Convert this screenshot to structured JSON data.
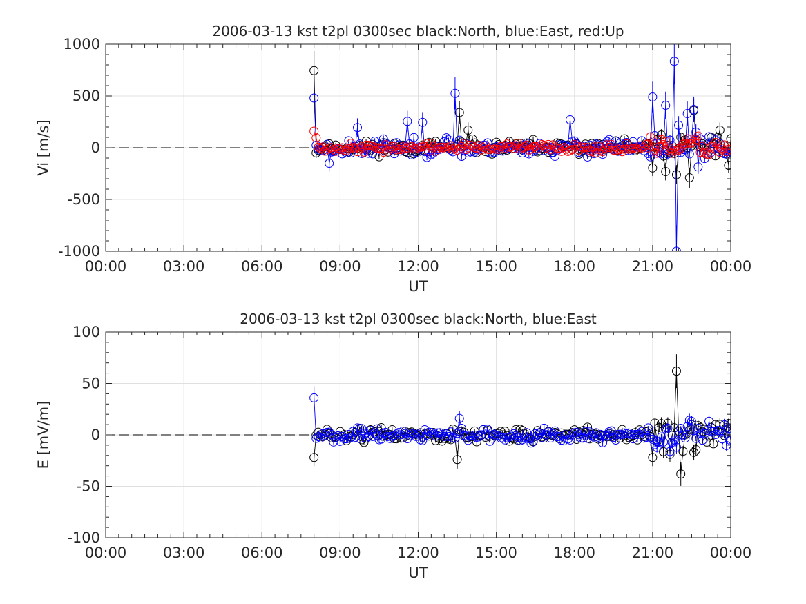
{
  "chart_data": [
    {
      "type": "scatter",
      "title": "2006-03-13 kst t2pl 0300sec black:North, blue:East, red:Up",
      "xlabel": "UT",
      "ylabel": "Vi [m/s]",
      "xlim": [
        0,
        24
      ],
      "ylim": [
        -1000,
        1000
      ],
      "xticks": [
        0,
        3,
        6,
        9,
        12,
        15,
        18,
        21,
        24
      ],
      "xtick_labels": [
        "00:00",
        "03:00",
        "06:00",
        "09:00",
        "12:00",
        "15:00",
        "18:00",
        "21:00",
        "00:00"
      ],
      "yticks": [
        -1000,
        -500,
        0,
        500,
        1000
      ],
      "ytick_labels": [
        "-1000",
        "-500",
        "0",
        "500",
        "1000"
      ],
      "grid": true,
      "zero_line": {
        "x_start": 0,
        "x_end": 8,
        "style": "dashed",
        "color": "#000000"
      },
      "series": [
        {
          "name": "North",
          "color": "#000000",
          "seed": 11,
          "amp": 40,
          "spikes": [
            [
              8.0,
              745
            ],
            [
              8.08,
              -50
            ],
            [
              13.55,
              340
            ],
            [
              13.9,
              170
            ],
            [
              21.0,
              -195
            ],
            [
              21.5,
              -230
            ],
            [
              21.9,
              -260
            ],
            [
              22.4,
              -290
            ],
            [
              22.55,
              360
            ],
            [
              23.6,
              170
            ],
            [
              23.9,
              -170
            ]
          ]
        },
        {
          "name": "East",
          "color": "#0000ff",
          "seed": 23,
          "amp": 50,
          "spikes": [
            [
              8.0,
              480
            ],
            [
              8.6,
              -150
            ],
            [
              9.65,
              195
            ],
            [
              11.6,
              255
            ],
            [
              12.2,
              245
            ],
            [
              13.45,
              525
            ],
            [
              17.8,
              270
            ],
            [
              21.0,
              490
            ],
            [
              21.5,
              410
            ],
            [
              21.8,
              835
            ],
            [
              21.9,
              -1000
            ],
            [
              22.35,
              330
            ],
            [
              22.6,
              370
            ]
          ]
        },
        {
          "name": "Up",
          "color": "#ff0000",
          "seed": 37,
          "amp": 25,
          "spikes": [
            [
              7.95,
              160
            ],
            [
              8.05,
              95
            ]
          ]
        }
      ]
    },
    {
      "type": "scatter",
      "title": "2006-03-13 kst t2pl 0300sec black:North, blue:East",
      "xlabel": "UT",
      "ylabel": "E [mV/m]",
      "xlim": [
        0,
        24
      ],
      "ylim": [
        -100,
        100
      ],
      "xticks": [
        0,
        3,
        6,
        9,
        12,
        15,
        18,
        21,
        24
      ],
      "xtick_labels": [
        "00:00",
        "03:00",
        "06:00",
        "09:00",
        "12:00",
        "15:00",
        "18:00",
        "21:00",
        "00:00"
      ],
      "yticks": [
        -100,
        -50,
        0,
        50,
        100
      ],
      "ytick_labels": [
        "-100",
        "-50",
        "0",
        "50",
        "100"
      ],
      "grid": true,
      "zero_line": {
        "x_start": 0,
        "x_end": 8,
        "style": "dashed",
        "color": "#000000"
      },
      "series": [
        {
          "name": "North",
          "color": "#000000",
          "seed": 51,
          "amp": 4,
          "spikes": [
            [
              8.0,
              -22
            ],
            [
              13.5,
              -24
            ],
            [
              21.0,
              -22
            ],
            [
              21.3,
              11
            ],
            [
              21.7,
              -19
            ],
            [
              21.95,
              62
            ],
            [
              22.05,
              -38
            ],
            [
              22.6,
              -17
            ]
          ]
        },
        {
          "name": "East",
          "color": "#0000ff",
          "seed": 67,
          "amp": 4,
          "spikes": [
            [
              8.0,
              36
            ],
            [
              13.6,
              16
            ],
            [
              21.45,
              -7
            ],
            [
              21.9,
              -12
            ]
          ]
        }
      ]
    }
  ]
}
